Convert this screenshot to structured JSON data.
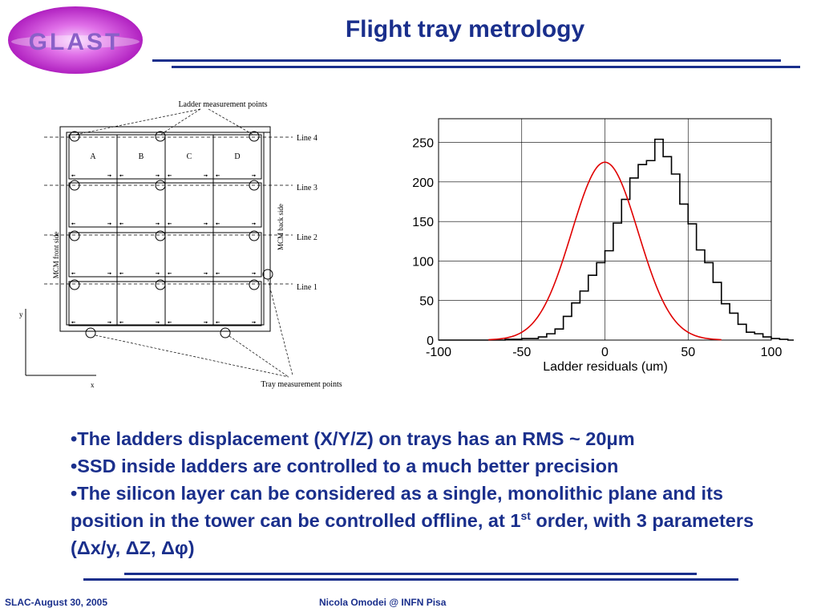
{
  "slide": {
    "logo_text": "GLAST",
    "title": "Flight tray metrology"
  },
  "diagram": {
    "top_label": "Ladder measurement points",
    "bottom_label": "Tray measurement points",
    "column_labels": [
      "A",
      "B",
      "C",
      "D"
    ],
    "line_labels": [
      "Line 4",
      "Line 3",
      "Line 2",
      "Line 1"
    ],
    "left_side_label": "MCM front side",
    "right_side_label": "MCM back side",
    "axis_y": "y",
    "axis_x": "x"
  },
  "chart_data": {
    "type": "bar",
    "xlabel": "Ladder residuals (um)",
    "ylabel": "",
    "xlim": [
      -100,
      100
    ],
    "ylim": [
      0,
      280
    ],
    "x_ticks": [
      "-100",
      "-50",
      "0",
      "50",
      "100"
    ],
    "y_ticks": [
      "0",
      "50",
      "100",
      "150",
      "200",
      "250"
    ],
    "bin_width": 5,
    "bin_edges_start": -100,
    "values": [
      0,
      0,
      0,
      0,
      0,
      0,
      0,
      0,
      1,
      1,
      2,
      2,
      4,
      8,
      14,
      30,
      47,
      62,
      82,
      98,
      113,
      148,
      178,
      205,
      222,
      227,
      254,
      232,
      210,
      172,
      147,
      114,
      98,
      73,
      46,
      34,
      20,
      10,
      8,
      4,
      2,
      1,
      0,
      0,
      0,
      0,
      0,
      0,
      0,
      0
    ],
    "fit": {
      "type": "gaussian",
      "amplitude": 225,
      "mean": 0,
      "sigma": 20
    },
    "series_colors": {
      "histogram": "#000000",
      "fit": "#e00000"
    }
  },
  "bullets": {
    "b1": "•The ladders displacement (X/Y/Z) on trays has an RMS ~ 20μm",
    "b2": "•SSD inside ladders are controlled to a much better precision",
    "b3_pre": "•The silicon layer can be considered as a single, monolithic plane and its position in the tower can be controlled offline, at 1",
    "b3_sup": "st",
    "b3_post": " order, with 3 parameters (Δx/y, ΔZ, Δφ)"
  },
  "footer": {
    "left": "SLAC-August 30, 2005",
    "center": "Nicola Omodei @ INFN Pisa"
  },
  "colors": {
    "accent": "#1a2f8c",
    "logo_text": "#8a60c8"
  }
}
